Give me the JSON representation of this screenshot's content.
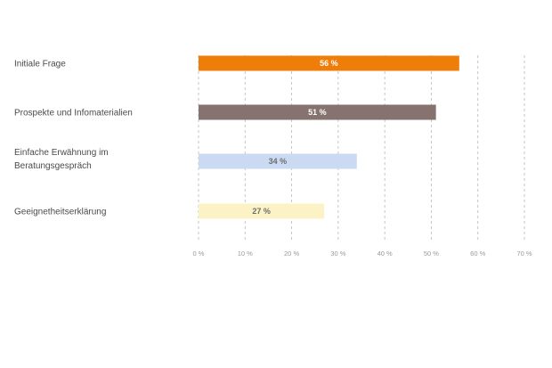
{
  "chart_data": {
    "type": "bar",
    "orientation": "horizontal",
    "categories": [
      [
        "Initiale Frage"
      ],
      [
        "Prospekte und Infomaterialien"
      ],
      [
        "Einfache Erwähnung im",
        "Beratungsgespräch"
      ],
      [
        "Geeignetheitserklärung"
      ]
    ],
    "values": [
      56,
      51,
      34,
      27
    ],
    "value_labels": [
      "56 %",
      "51 %",
      "34 %",
      "27 %"
    ],
    "bar_colors": [
      "#ef7d0a",
      "#86736f",
      "#c9daf2",
      "#fbf3c5"
    ],
    "bar_label_colors": [
      "#ffffff",
      "#ffffff",
      "#6e6e6e",
      "#6e6e6e"
    ],
    "xlim": [
      0,
      70
    ],
    "xticks": [
      0,
      10,
      20,
      30,
      40,
      50,
      60,
      70
    ],
    "xtick_labels": [
      "0 %",
      "10 %",
      "20 %",
      "30 %",
      "40 %",
      "50 %",
      "60 %",
      "70 %"
    ],
    "grid": true,
    "title": "",
    "xlabel": "",
    "ylabel": ""
  }
}
